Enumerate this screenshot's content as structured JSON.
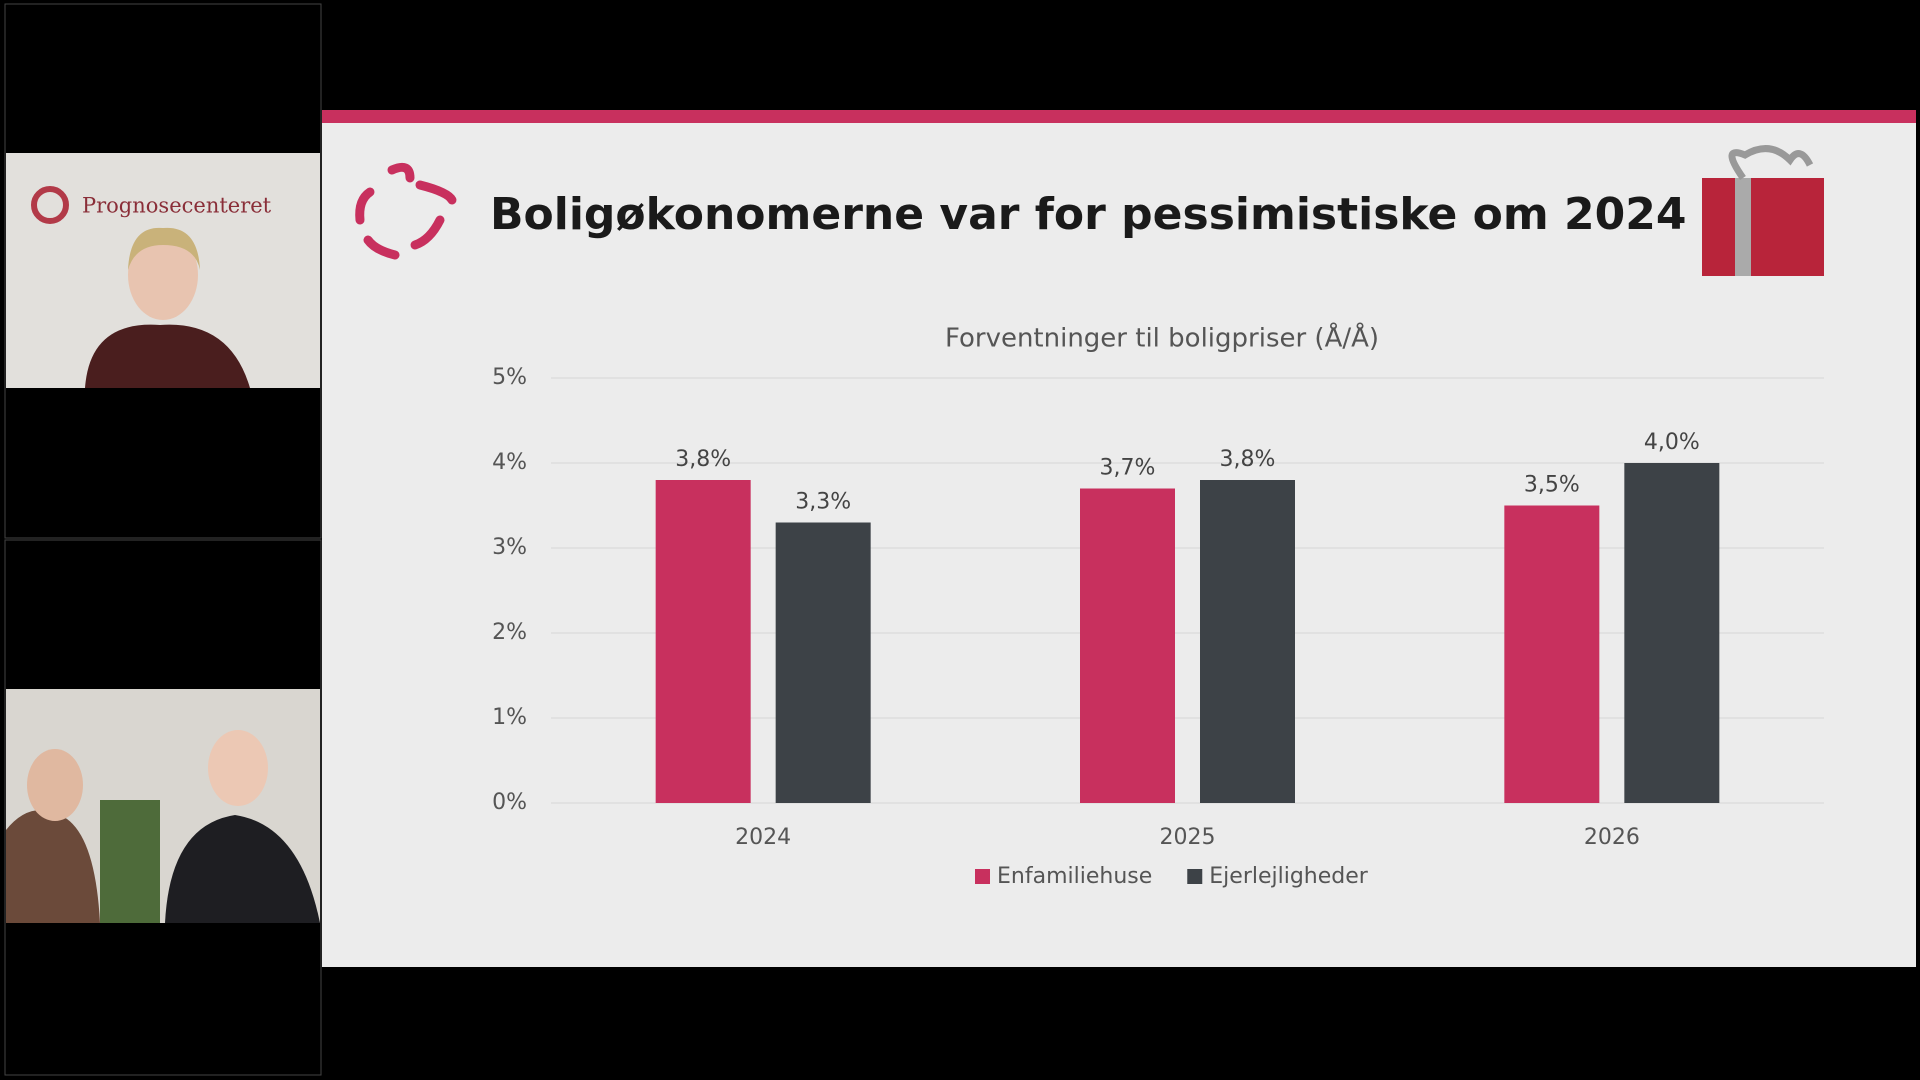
{
  "participants": {
    "tile_1_logo": "Prognosecenteret"
  },
  "slide": {
    "title": "Boligøkonomerne var for pessimistiske om 2024"
  },
  "chart_data": {
    "type": "bar",
    "title": "Forventninger til boligpriser (Å/Å)",
    "categories": [
      "2024",
      "2025",
      "2026"
    ],
    "series": [
      {
        "name": "Enfamiliehuse",
        "color": "#c8305e",
        "values": [
          3.8,
          3.7,
          3.5
        ],
        "value_labels": [
          "3,8%",
          "3,7%",
          "3,5%"
        ]
      },
      {
        "name": "Ejerlejligheder",
        "color": "#3d4247",
        "values": [
          3.3,
          3.8,
          4.0
        ],
        "value_labels": [
          "3,3%",
          "3,8%",
          "4,0%"
        ]
      }
    ],
    "ylim": [
      0,
      5
    ],
    "yticks": [
      {
        "value": 0,
        "label": "0%"
      },
      {
        "value": 1,
        "label": "1%"
      },
      {
        "value": 2,
        "label": "2%"
      },
      {
        "value": 3,
        "label": "3%"
      },
      {
        "value": 4,
        "label": "4%"
      },
      {
        "value": 5,
        "label": "5%"
      }
    ],
    "grid": true,
    "legend": "bottom"
  }
}
